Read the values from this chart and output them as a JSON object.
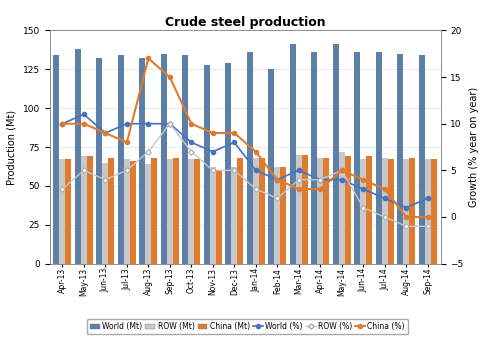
{
  "title": "Crude steel production",
  "ylabel_left": "Production (Mt)",
  "ylabel_right": "Growth (% year on year)",
  "categories": [
    "Apr-13",
    "May-13",
    "Jun-13",
    "Jul-13",
    "Aug-13",
    "Sep-13",
    "Oct-13",
    "Nov-13",
    "Dec-13",
    "Jan-14",
    "Feb-14",
    "Mar-14",
    "Apr-14",
    "May-14",
    "Jun-14",
    "Jul-14",
    "Aug-14",
    "Sep-14"
  ],
  "world_mt": [
    134,
    138,
    132,
    134,
    132,
    135,
    134,
    128,
    129,
    136,
    125,
    141,
    136,
    141,
    136,
    136,
    135,
    134
  ],
  "row_mt": [
    67,
    69,
    65,
    67,
    64,
    67,
    67,
    62,
    62,
    68,
    62,
    70,
    68,
    72,
    67,
    68,
    67,
    67
  ],
  "china_mt": [
    67,
    69,
    68,
    66,
    68,
    68,
    67,
    60,
    68,
    68,
    62,
    70,
    68,
    69,
    69,
    67,
    68,
    67
  ],
  "world_pct": [
    10,
    11,
    9,
    10,
    10,
    10,
    8,
    7,
    8,
    5,
    4,
    5,
    4,
    4,
    3,
    2,
    1,
    2
  ],
  "row_pct": [
    3,
    5,
    4,
    5,
    7,
    10,
    7,
    5,
    5,
    3,
    2,
    4,
    4,
    5,
    1,
    0,
    -1,
    -1
  ],
  "china_pct": [
    10,
    10,
    9,
    8,
    17,
    15,
    10,
    9,
    9,
    7,
    4,
    3,
    3,
    5,
    4,
    3,
    0,
    0
  ],
  "color_world_bar": "#5b7fa6",
  "color_row_bar": "#c8c8c8",
  "color_china_bar": "#e07b2e",
  "color_world_line": "#4472c4",
  "color_row_line": "#c8c8c8",
  "color_china_line": "#e07b2e",
  "ylim_left": [
    0,
    150
  ],
  "ylim_right": [
    -5,
    20
  ],
  "yticks_left": [
    0,
    25,
    50,
    75,
    100,
    125,
    150
  ],
  "yticks_right": [
    -5,
    0,
    5,
    10,
    15,
    20
  ]
}
